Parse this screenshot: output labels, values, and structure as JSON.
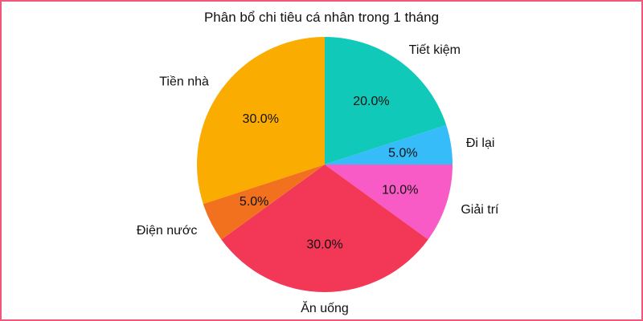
{
  "chart_data": {
    "type": "pie",
    "title": "Phân bổ chi tiêu cá nhân trong 1 tháng",
    "start_angle_deg": 90,
    "direction": "clockwise",
    "slices": [
      {
        "label": "Tiết kiệm",
        "value": 20.0,
        "pct_label": "20.0%",
        "color": "#11c9b8"
      },
      {
        "label": "Đi lại",
        "value": 5.0,
        "pct_label": "5.0%",
        "color": "#35bcf9"
      },
      {
        "label": "Giải trí",
        "value": 10.0,
        "pct_label": "10.0%",
        "color": "#f85ac6"
      },
      {
        "label": "Ăn uống",
        "value": 30.0,
        "pct_label": "30.0%",
        "color": "#f33757"
      },
      {
        "label": "Điện nước",
        "value": 5.0,
        "pct_label": "5.0%",
        "color": "#f2711f"
      },
      {
        "label": "Tiền nhà",
        "value": 30.0,
        "pct_label": "30.0%",
        "color": "#fbac00"
      }
    ]
  },
  "colors": {
    "border": "#f2577a",
    "background": "#ffffff"
  }
}
